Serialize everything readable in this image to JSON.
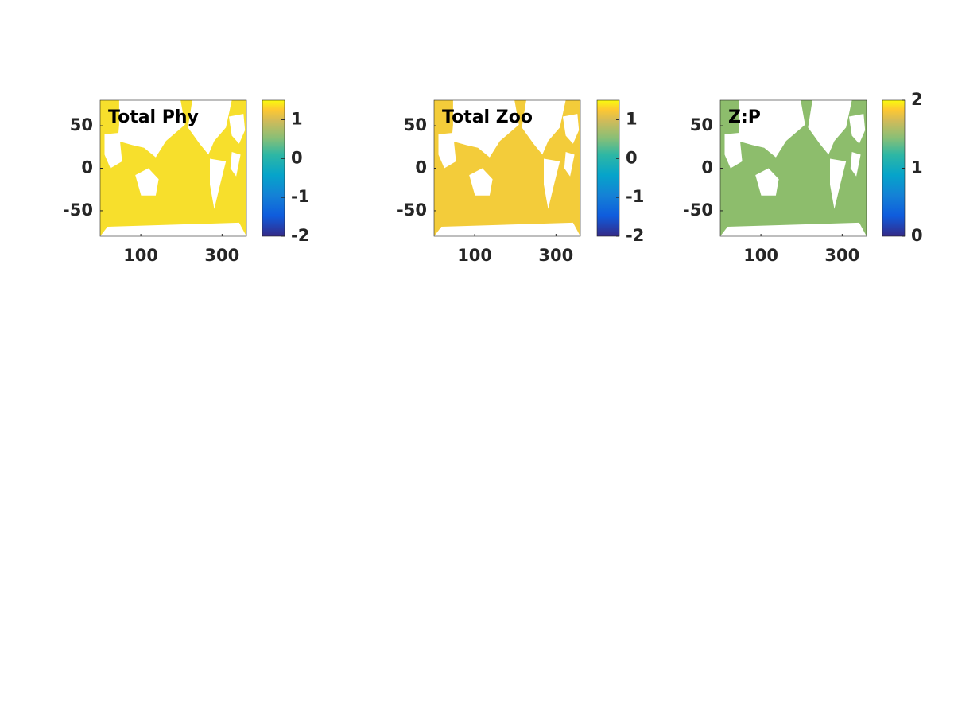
{
  "chart_data": [
    {
      "type": "heatmap",
      "title": "Total Phy",
      "xlim": [
        0,
        360
      ],
      "ylim": [
        -80,
        80
      ],
      "xticks": [
        100,
        300
      ],
      "yticks": [
        -50,
        0,
        50
      ],
      "clim": [
        -2,
        1.5
      ],
      "cticks": [
        -2,
        -1,
        0,
        1
      ],
      "colormap": "parula",
      "color": "#f7df2c"
    },
    {
      "type": "heatmap",
      "title": "Total Zoo",
      "xlim": [
        0,
        360
      ],
      "ylim": [
        -80,
        80
      ],
      "xticks": [
        100,
        300
      ],
      "yticks": [
        -50,
        0,
        50
      ],
      "clim": [
        -2,
        1.5
      ],
      "cticks": [
        -2,
        -1,
        0,
        1
      ],
      "colormap": "parula",
      "color": "#f3cc3a"
    },
    {
      "type": "heatmap",
      "title": "Z:P",
      "xlim": [
        0,
        360
      ],
      "ylim": [
        -80,
        80
      ],
      "xticks": [
        100,
        300
      ],
      "yticks": [
        -50,
        0,
        50
      ],
      "clim": [
        0,
        2
      ],
      "cticks": [
        0,
        1,
        2
      ],
      "colormap": "parula",
      "color": "#8dbd6c"
    }
  ]
}
